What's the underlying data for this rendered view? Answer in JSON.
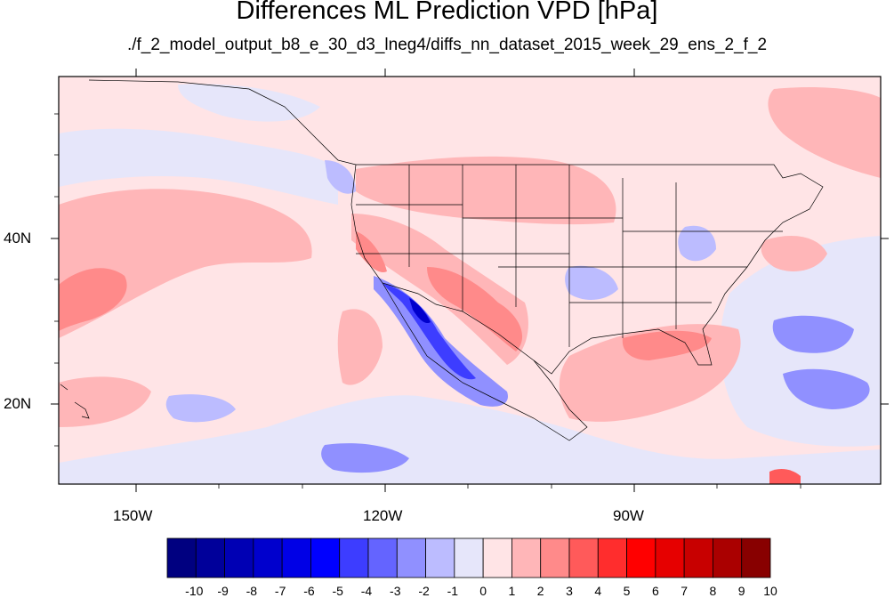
{
  "title": "Differences ML Prediction VPD [hPa]",
  "subtitle": "./f_2_model_output_b8_e_30_d3_lneg4/diffs_nn_dataset_2015_week_29_ens_2_f_2",
  "axes": {
    "lon_labels": [
      "150W",
      "120W",
      "90W"
    ],
    "lat_labels": [
      "40N",
      "20N"
    ]
  },
  "colorbar": {
    "labels": [
      "-10",
      "-9",
      "-8",
      "-7",
      "-6",
      "-5",
      "-4",
      "-3",
      "-2",
      "-1",
      "0",
      "1",
      "2",
      "3",
      "4",
      "5",
      "6",
      "7",
      "8",
      "9",
      "10"
    ],
    "colors": [
      "#000080",
      "#00009a",
      "#0000b4",
      "#0000cd",
      "#0000e6",
      "#0000ff",
      "#3d3dff",
      "#6464ff",
      "#9090ff",
      "#bcbcff",
      "#e6e6fa",
      "#ffe4e6",
      "#ffb6b8",
      "#ff8a8a",
      "#ff5a5a",
      "#ff2d2d",
      "#ff0000",
      "#e60000",
      "#c80000",
      "#aa0000",
      "#880000"
    ]
  },
  "colors": {
    "ocean_base": "#ffe4e6",
    "neutral": "#e6e6fa",
    "border": "#000000"
  }
}
